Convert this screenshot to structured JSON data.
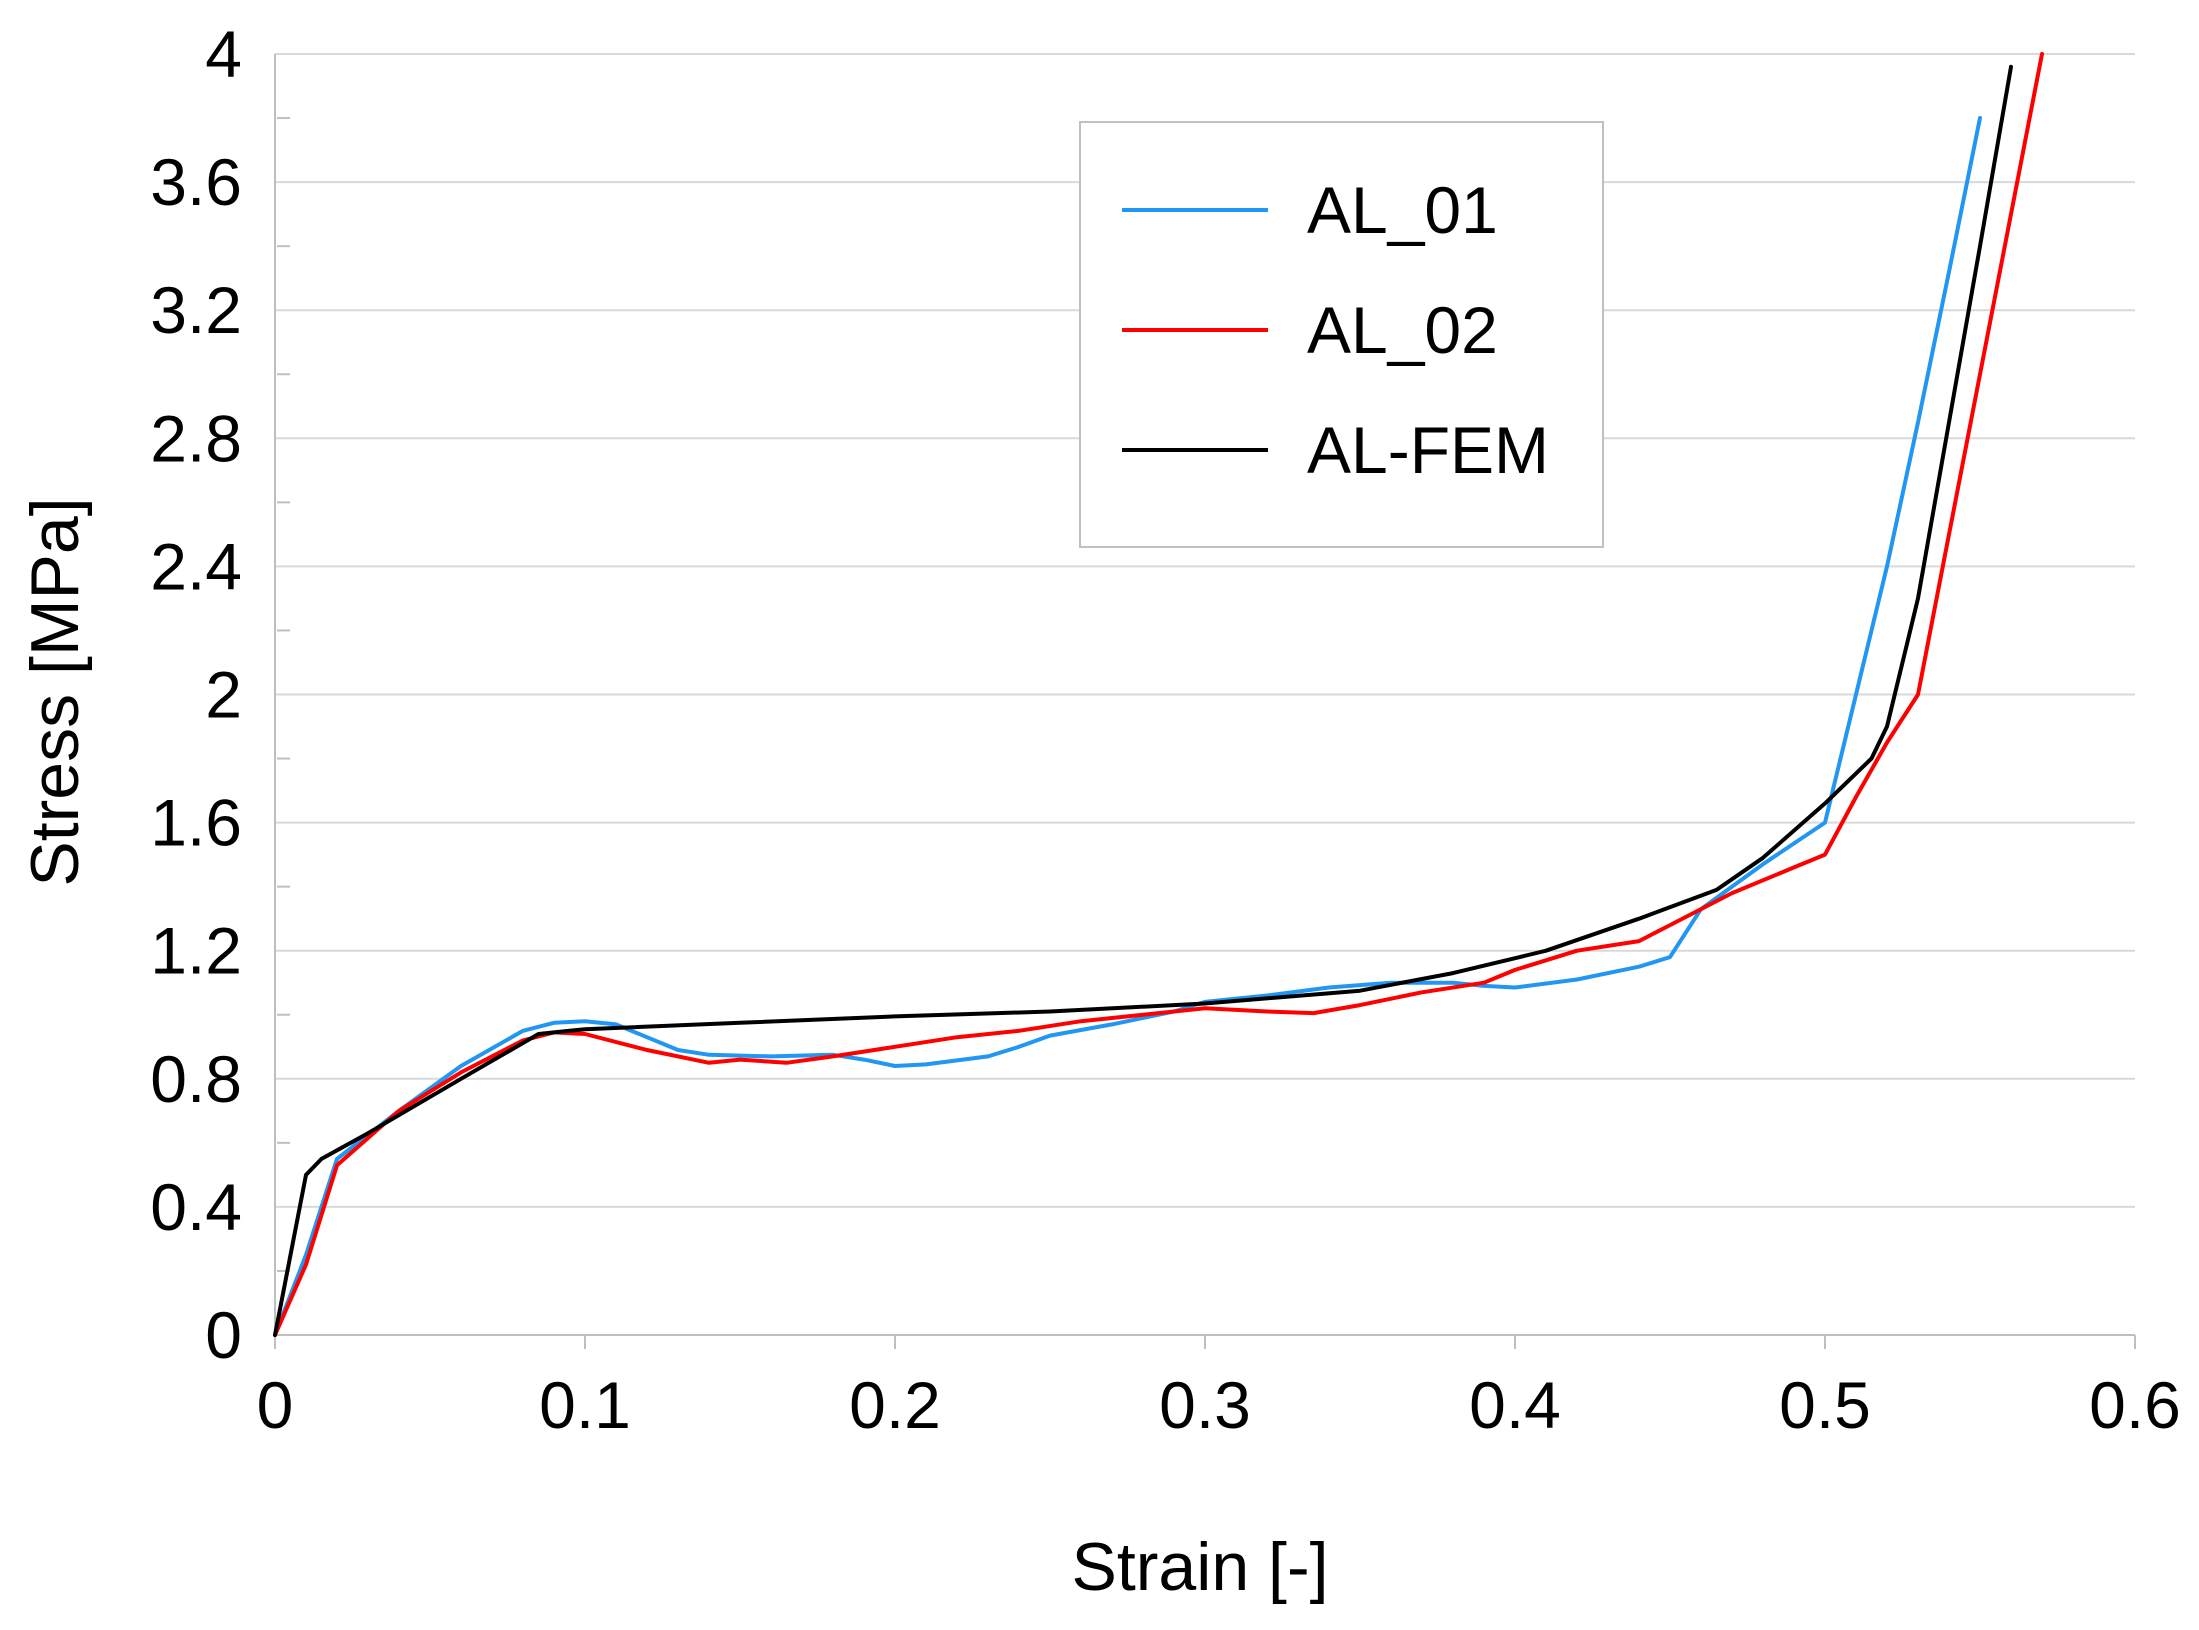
{
  "chart_data": {
    "type": "line",
    "title": "",
    "xlabel": "Strain [-]",
    "ylabel": "Stress [MPa]",
    "xlim": [
      0,
      0.6
    ],
    "ylim": [
      0,
      4
    ],
    "x_ticks": [
      0,
      0.1,
      0.2,
      0.3,
      0.4,
      0.5,
      0.6
    ],
    "x_tick_labels": [
      "0",
      "0.1",
      "0.2",
      "0.3",
      "0.4",
      "0.5",
      "0.6"
    ],
    "y_ticks": [
      0,
      0.4,
      0.8,
      1.2,
      1.6,
      2,
      2.4,
      2.8,
      3.2,
      3.6,
      4
    ],
    "y_tick_labels": [
      "0",
      "0.4",
      "0.8",
      "1.2",
      "1.6",
      "2",
      "2.4",
      "2.8",
      "3.2",
      "3.6",
      "4"
    ],
    "grid": "horizontal",
    "legend_position": "top-center",
    "series": [
      {
        "name": "AL_01",
        "color": "#2196F3",
        "x": [
          0,
          0.01,
          0.02,
          0.04,
          0.06,
          0.08,
          0.09,
          0.1,
          0.11,
          0.12,
          0.13,
          0.14,
          0.16,
          0.18,
          0.19,
          0.2,
          0.21,
          0.23,
          0.24,
          0.25,
          0.27,
          0.29,
          0.3,
          0.32,
          0.34,
          0.36,
          0.38,
          0.39,
          0.4,
          0.42,
          0.44,
          0.45,
          0.46,
          0.48,
          0.5,
          0.51,
          0.52,
          0.53,
          0.54,
          0.55
        ],
        "y": [
          0,
          0.25,
          0.55,
          0.7,
          0.84,
          0.95,
          0.975,
          0.98,
          0.97,
          0.93,
          0.89,
          0.875,
          0.87,
          0.875,
          0.86,
          0.84,
          0.845,
          0.87,
          0.9,
          0.935,
          0.97,
          1.01,
          1.04,
          1.06,
          1.085,
          1.1,
          1.1,
          1.09,
          1.085,
          1.11,
          1.15,
          1.18,
          1.33,
          1.47,
          1.6,
          2.0,
          2.4,
          2.85,
          3.32,
          3.8
        ]
      },
      {
        "name": "AL_02",
        "color": "#FF0000",
        "x": [
          0,
          0.01,
          0.02,
          0.04,
          0.06,
          0.08,
          0.09,
          0.1,
          0.12,
          0.14,
          0.15,
          0.165,
          0.18,
          0.2,
          0.22,
          0.24,
          0.26,
          0.28,
          0.3,
          0.32,
          0.335,
          0.35,
          0.37,
          0.39,
          0.4,
          0.42,
          0.44,
          0.45,
          0.47,
          0.49,
          0.5,
          0.51,
          0.52,
          0.53,
          0.54,
          0.55,
          0.56,
          0.57
        ],
        "y": [
          0,
          0.22,
          0.53,
          0.7,
          0.82,
          0.92,
          0.945,
          0.94,
          0.89,
          0.85,
          0.86,
          0.85,
          0.87,
          0.9,
          0.93,
          0.95,
          0.98,
          1.0,
          1.02,
          1.01,
          1.005,
          1.03,
          1.07,
          1.1,
          1.14,
          1.2,
          1.23,
          1.28,
          1.38,
          1.46,
          1.5,
          1.68,
          1.85,
          2.0,
          2.5,
          3.0,
          3.5,
          4.0
        ]
      },
      {
        "name": "AL-FEM",
        "color": "#000000",
        "x": [
          0,
          0.01,
          0.015,
          0.03,
          0.06,
          0.085,
          0.095,
          0.1,
          0.15,
          0.2,
          0.25,
          0.3,
          0.35,
          0.38,
          0.41,
          0.44,
          0.465,
          0.48,
          0.5,
          0.515,
          0.52,
          0.525,
          0.53,
          0.54,
          0.55,
          0.56
        ],
        "y": [
          0,
          0.5,
          0.55,
          0.63,
          0.8,
          0.94,
          0.95,
          0.955,
          0.975,
          0.995,
          1.01,
          1.035,
          1.075,
          1.13,
          1.2,
          1.3,
          1.39,
          1.49,
          1.66,
          1.8,
          1.9,
          2.1,
          2.3,
          2.85,
          3.4,
          3.96
        ]
      }
    ]
  }
}
